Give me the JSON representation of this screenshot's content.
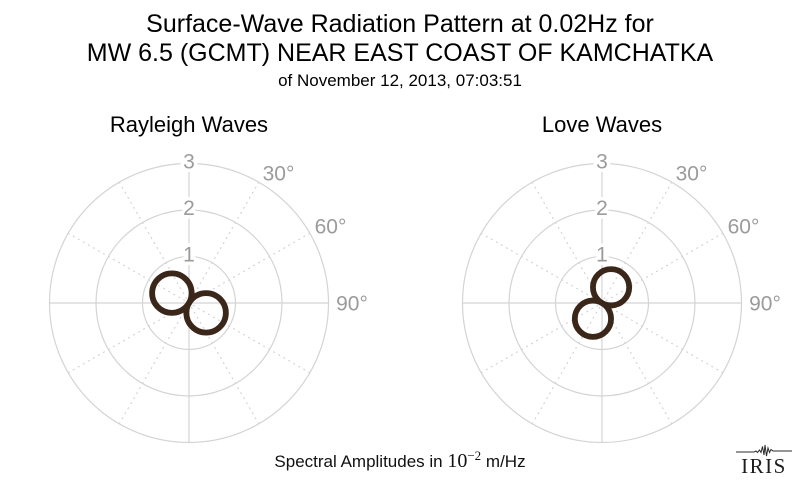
{
  "title": {
    "line1": "Surface-Wave Radiation Pattern at 0.02Hz for",
    "line2": "MW 6.5 (GCMT) NEAR EAST COAST OF KAMCHATKA",
    "line3": "of November 12, 2013, 07:03:51"
  },
  "caption": {
    "prefix": "Spectral Amplitudes in ",
    "base": "10",
    "exponent": "−2",
    "suffix": " m/Hz"
  },
  "logo": {
    "text": "IRIS",
    "icon": "seismogram-trace-icon"
  },
  "colors": {
    "background": "#ffffff",
    "grid": "#d4d4d4",
    "grid_label": "#9b9b9b",
    "lobe": "#3a2719",
    "title": "#000000"
  },
  "chart_data": [
    {
      "type": "polar",
      "title": "Rayleigh Waves",
      "units": "10^-2 m/Hz",
      "r_ticks": [
        1,
        2,
        3
      ],
      "r_max": 3,
      "angle_labels": [
        {
          "value": 30,
          "label": "30°"
        },
        {
          "value": 60,
          "label": "60°"
        },
        {
          "value": 90,
          "label": "90°"
        }
      ],
      "grid_solid_spokes_deg": [
        0,
        90,
        180,
        270
      ],
      "grid_dotted_spokes_deg": [
        30,
        60,
        120,
        150,
        210,
        240,
        300,
        330
      ],
      "pattern": {
        "shape": "two_lobe",
        "formula": "r(az) = A|cos(az - az0)|",
        "peak_amplitude": 0.85,
        "lobe_azimuth_deg": 120
      }
    },
    {
      "type": "polar",
      "title": "Love Waves",
      "units": "10^-2 m/Hz",
      "r_ticks": [
        1,
        2,
        3
      ],
      "r_max": 3,
      "angle_labels": [
        {
          "value": 30,
          "label": "30°"
        },
        {
          "value": 60,
          "label": "60°"
        },
        {
          "value": 90,
          "label": "90°"
        }
      ],
      "grid_solid_spokes_deg": [
        0,
        90,
        180,
        270
      ],
      "grid_dotted_spokes_deg": [
        30,
        60,
        120,
        150,
        210,
        240,
        300,
        330
      ],
      "pattern": {
        "shape": "two_lobe",
        "formula": "r(az) = A|cos(az - az0)|",
        "peak_amplitude": 0.78,
        "lobe_azimuth_deg": 30
      }
    }
  ]
}
